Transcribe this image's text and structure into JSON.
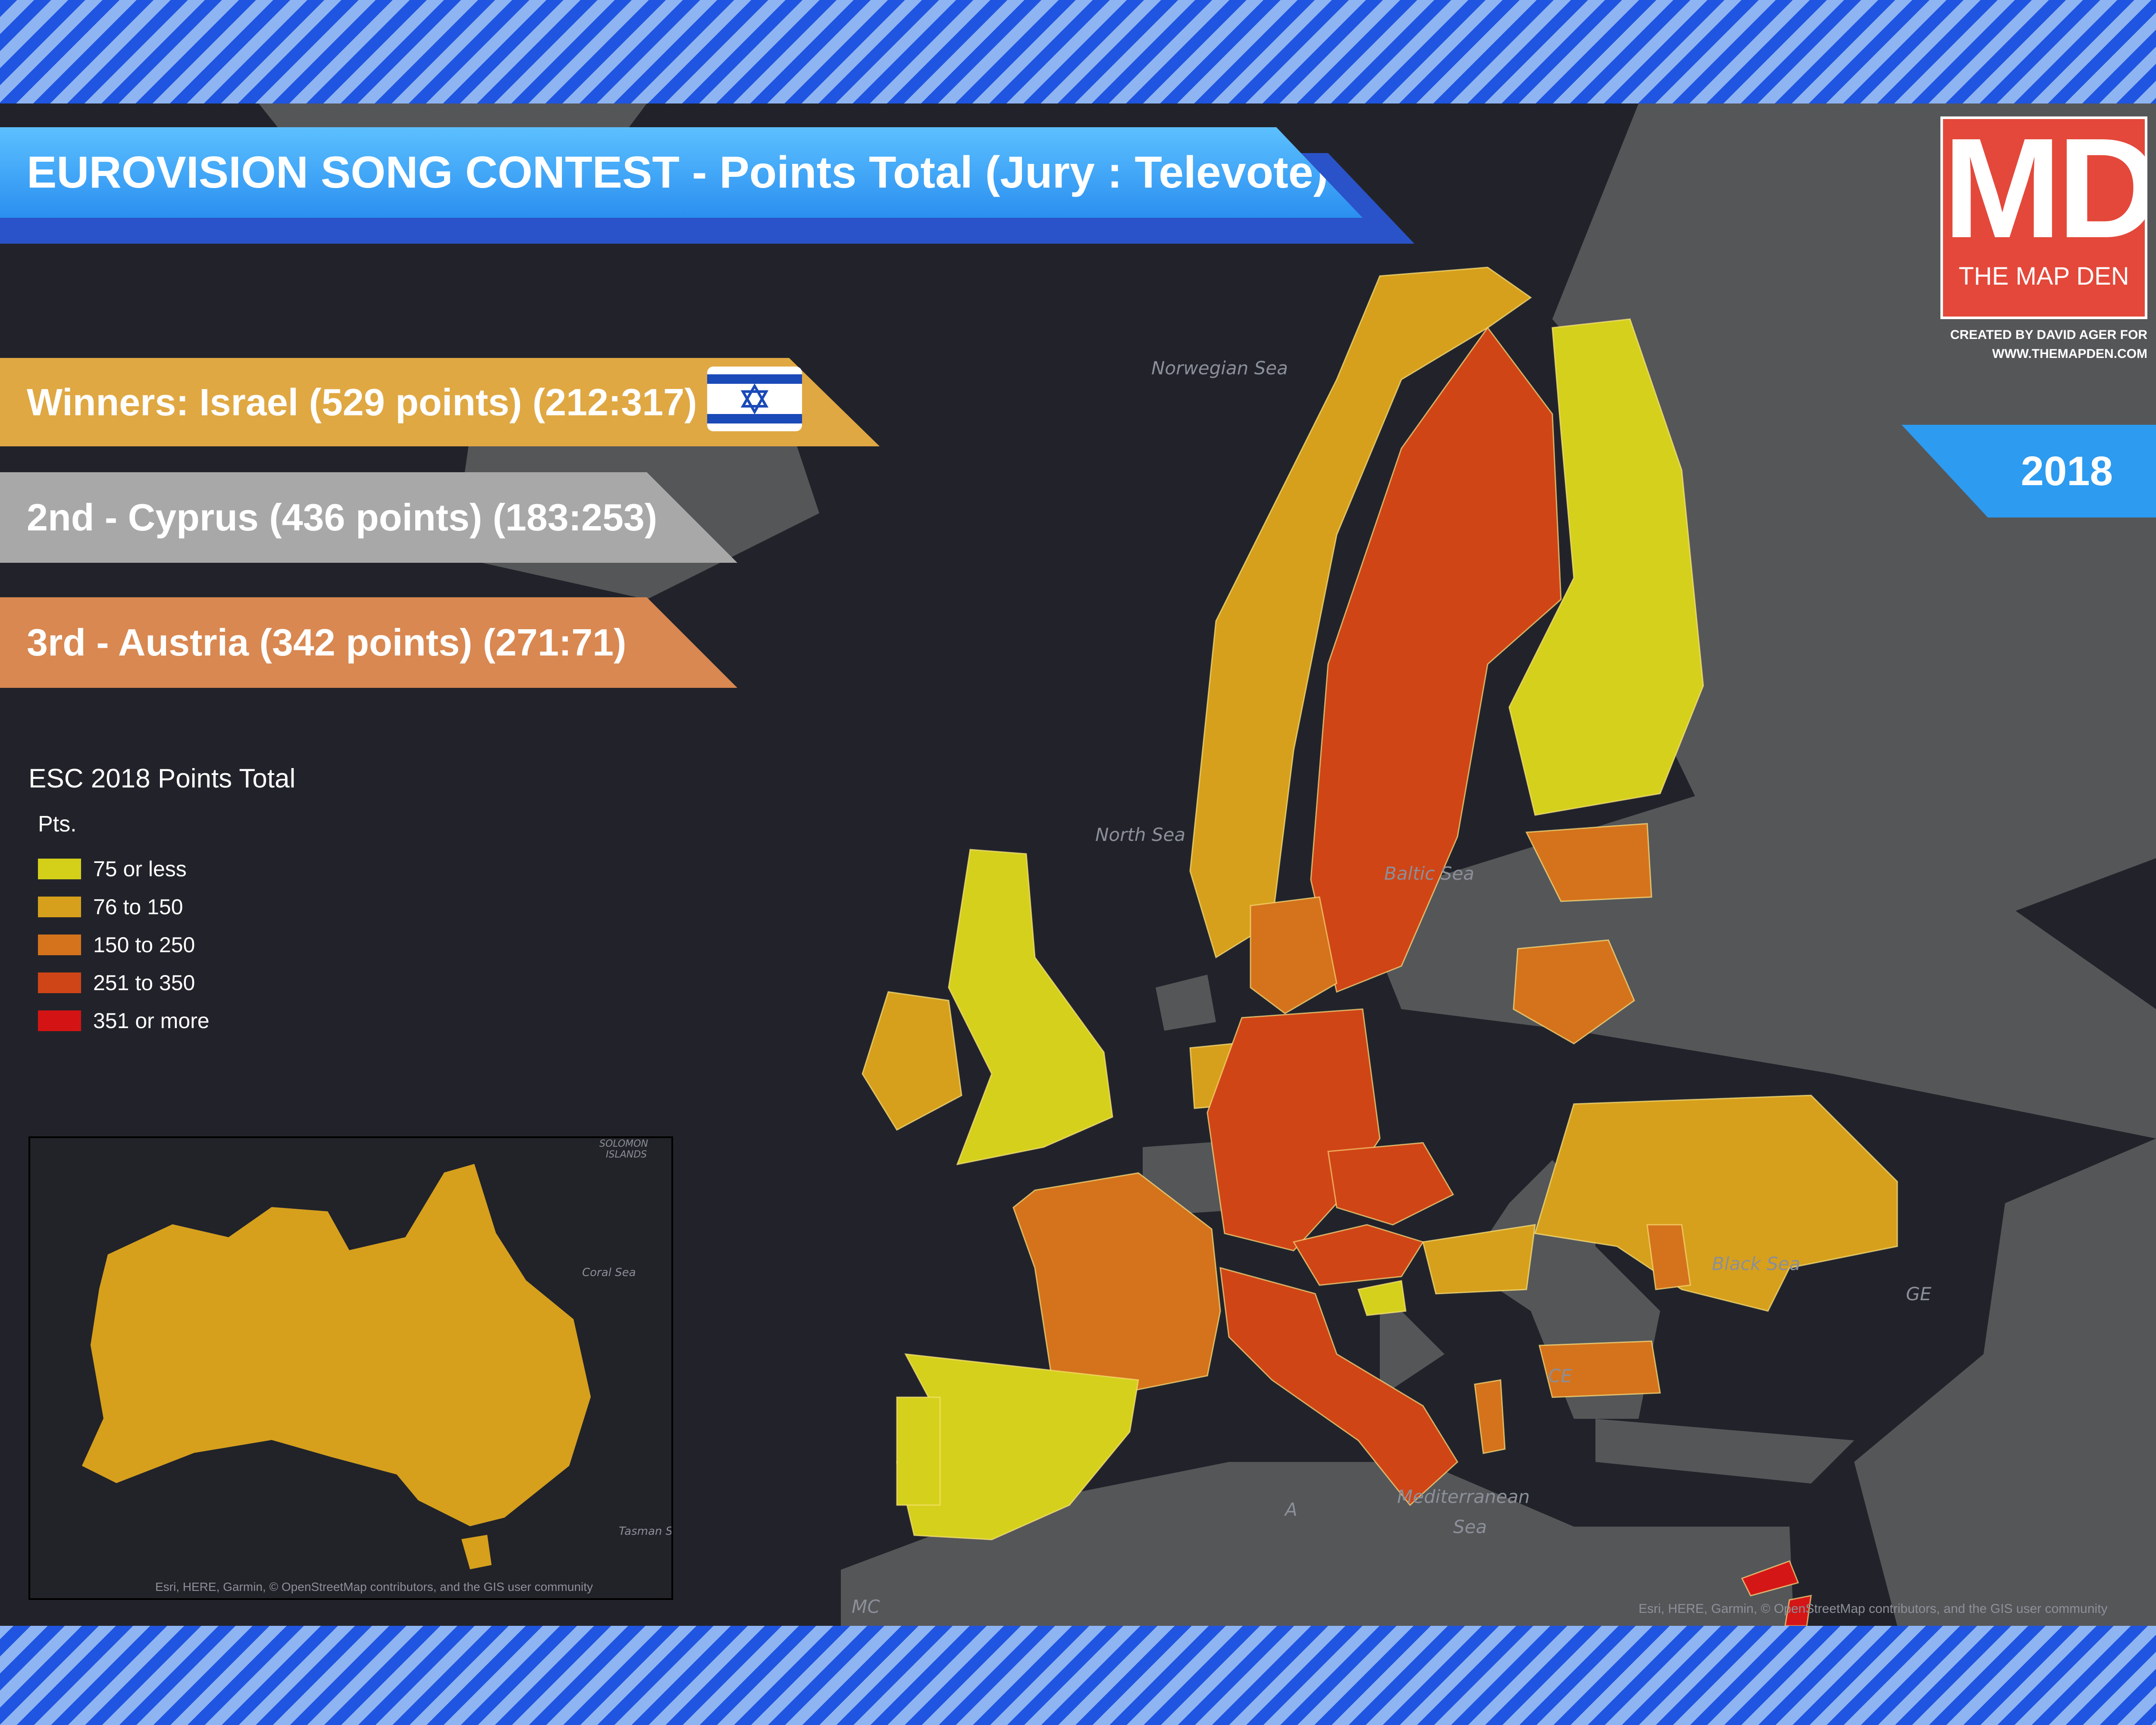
{
  "title": "EUROVISION SONG CONTEST - Points Total (Jury : Televote)",
  "winner": "Winners: Israel (529 points) (212:317)",
  "second": "2nd - Cyprus (436 points) (183:253)",
  "third": "3rd - Austria (342 points) (271:71)",
  "year": "2018",
  "logo": {
    "mark": "MD",
    "name": "THE MAP DEN"
  },
  "credit": {
    "line1": "CREATED BY DAVID AGER FOR",
    "line2": "WWW.THEMAPDEN.COM"
  },
  "legend": {
    "title": "ESC 2018 Points Total",
    "units": "Pts.",
    "classes": [
      {
        "label": "75 or less",
        "color": "#d4d01a"
      },
      {
        "label": "76 to 150",
        "color": "#d6a01c"
      },
      {
        "label": "150 to 250",
        "color": "#d4731c"
      },
      {
        "label": "251 to 350",
        "color": "#cf4517"
      },
      {
        "label": "351 or more",
        "color": "#d41414"
      }
    ]
  },
  "colors": {
    "sea": "#22232a",
    "land_no_data": "#555658",
    "banner_blue": "#3aa4f5",
    "logo_red": "#e4483a"
  },
  "sea_labels": {
    "norwegian": "Norwegian Sea",
    "north": "North Sea",
    "baltic": "Baltic Sea",
    "black": "Black Sea",
    "med1": "Mediterranean",
    "med2": "Sea",
    "coral": "Coral Sea",
    "tasman": "Tasman S",
    "solomon1": "SOLOMON",
    "solomon2": "ISLANDS"
  },
  "map_fragments": {
    "ge": "GE",
    "ce": "CE",
    "mc": "MC",
    "a": "A"
  },
  "attribution": "Esri, HERE, Garmin, © OpenStreetMap contributors, and the GIS user community",
  "countries": [
    {
      "name": "Norway",
      "class": "76 to 150"
    },
    {
      "name": "Sweden",
      "class": "251 to 350"
    },
    {
      "name": "Finland",
      "class": "75 or less"
    },
    {
      "name": "Estonia",
      "class": "150 to 250"
    },
    {
      "name": "Lithuania",
      "class": "150 to 250"
    },
    {
      "name": "Denmark",
      "class": "150 to 250"
    },
    {
      "name": "United Kingdom",
      "class": "75 or less"
    },
    {
      "name": "Ireland",
      "class": "76 to 150"
    },
    {
      "name": "Netherlands",
      "class": "76 to 150"
    },
    {
      "name": "Germany",
      "class": "251 to 350"
    },
    {
      "name": "Czech Republic",
      "class": "251 to 350"
    },
    {
      "name": "Austria",
      "class": "251 to 350"
    },
    {
      "name": "Hungary",
      "class": "76 to 150"
    },
    {
      "name": "Slovenia",
      "class": "75 or less"
    },
    {
      "name": "France",
      "class": "150 to 250"
    },
    {
      "name": "Spain",
      "class": "75 or less"
    },
    {
      "name": "Portugal",
      "class": "75 or less"
    },
    {
      "name": "Italy",
      "class": "251 to 350"
    },
    {
      "name": "Albania",
      "class": "150 to 250"
    },
    {
      "name": "Bulgaria",
      "class": "150 to 250"
    },
    {
      "name": "Ukraine",
      "class": "76 to 150"
    },
    {
      "name": "Moldova",
      "class": "150 to 250"
    },
    {
      "name": "Cyprus",
      "class": "351 or more"
    },
    {
      "name": "Israel",
      "class": "351 or more"
    },
    {
      "name": "Australia",
      "class": "76 to 150"
    }
  ]
}
